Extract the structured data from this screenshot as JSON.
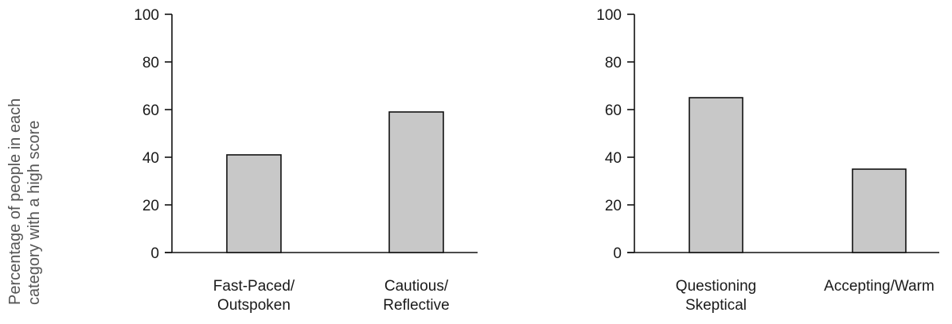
{
  "y_axis_label_lines": [
    "Percentage of people in each",
    "category with a high score"
  ],
  "colors": {
    "bar_fill": "#c8c8c8",
    "bar_stroke": "#111111",
    "axis": "#111111"
  },
  "chart_data": [
    {
      "type": "bar",
      "categories": [
        [
          "Fast-Paced/",
          "Outspoken"
        ],
        [
          "Cautious/",
          "Reflective"
        ]
      ],
      "values": [
        41,
        59
      ],
      "title": "",
      "xlabel": "",
      "ylabel": "Percentage of people in each category with a high score",
      "ylim": [
        0,
        100
      ],
      "yticks": [
        0,
        20,
        40,
        60,
        80,
        100
      ],
      "grid": false,
      "legend": "none"
    },
    {
      "type": "bar",
      "categories": [
        [
          "Questioning",
          "Skeptical"
        ],
        [
          "Accepting/Warm"
        ]
      ],
      "values": [
        65,
        35
      ],
      "title": "",
      "xlabel": "",
      "ylabel": "Percentage of people in each category with a high score",
      "ylim": [
        0,
        100
      ],
      "yticks": [
        0,
        20,
        40,
        60,
        80,
        100
      ],
      "grid": false,
      "legend": "none"
    }
  ]
}
